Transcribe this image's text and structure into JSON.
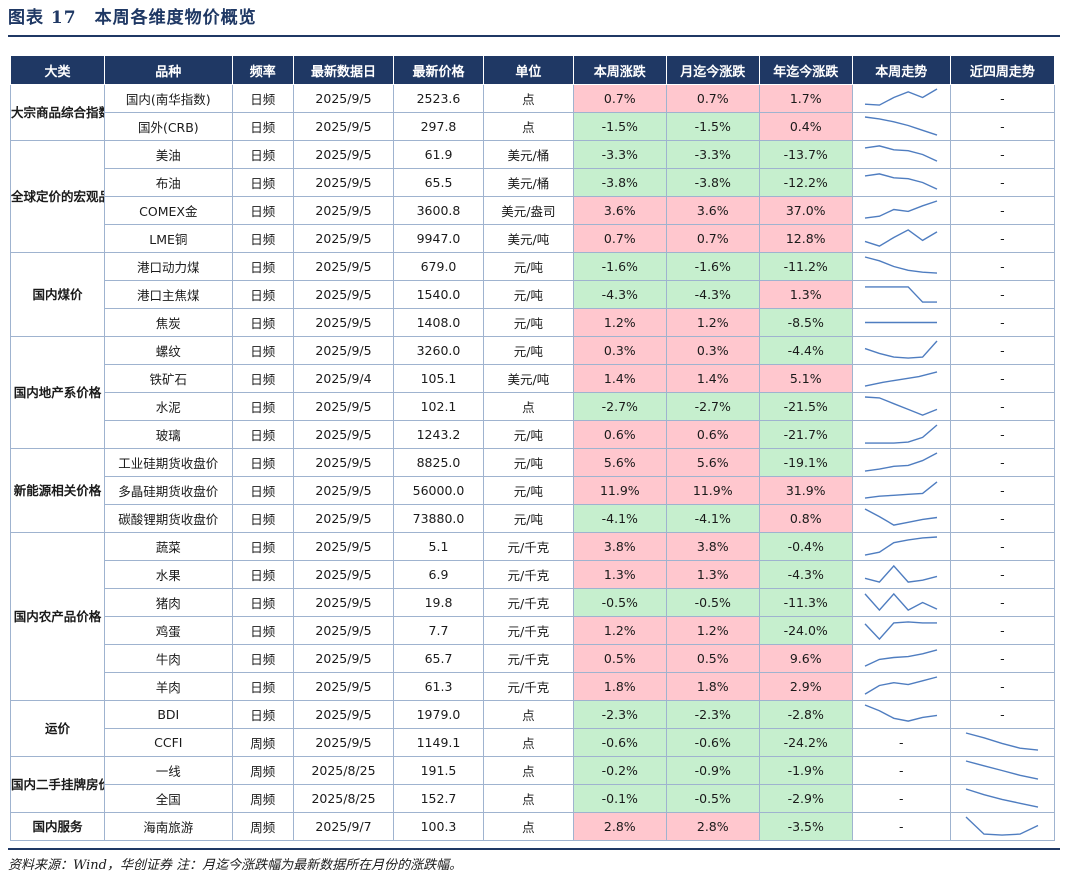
{
  "title": "图表 17　本周各维度物价概览",
  "source_note": "资料来源：Wind，华创证券 注：月迄今涨跌幅为最新数据所在月份的涨跌幅。",
  "colors": {
    "header_bg": "#1f3864",
    "rise_bg": "#ffc7ce",
    "fall_bg": "#c6efce",
    "spark_line": "#4f7dc0"
  },
  "headers": [
    "大类",
    "品种",
    "频率",
    "最新数据日",
    "最新价格",
    "单位",
    "本周涨跌",
    "月迄今涨跌",
    "年迄今涨跌",
    "本周走势",
    "近四周走势"
  ],
  "groups": [
    {
      "category": "大宗商品综合指数",
      "rows": [
        {
          "name": "国内(南华指数)",
          "freq": "日频",
          "date": "2025/9/5",
          "price": "2523.6",
          "unit": "点",
          "wk": "0.7%",
          "mtd": "0.7%",
          "ytd": "1.7%",
          "wk_trend": [
            0.2,
            0.15,
            0.55,
            0.85,
            0.55,
            1.0
          ],
          "m4_trend": "-"
        },
        {
          "name": "国外(CRB)",
          "freq": "日频",
          "date": "2025/9/5",
          "price": "297.8",
          "unit": "点",
          "wk": "-1.5%",
          "mtd": "-1.5%",
          "ytd": "0.4%",
          "wk_trend": [
            1.0,
            0.9,
            0.75,
            0.55,
            0.3,
            0.05
          ],
          "m4_trend": "-"
        }
      ]
    },
    {
      "category": "全球定价的宏观品种",
      "rows": [
        {
          "name": "美油",
          "freq": "日频",
          "date": "2025/9/5",
          "price": "61.9",
          "unit": "美元/桶",
          "wk": "-3.3%",
          "mtd": "-3.3%",
          "ytd": "-13.7%",
          "wk_trend": [
            0.85,
            0.95,
            0.75,
            0.7,
            0.5,
            0.15
          ],
          "m4_trend": "-"
        },
        {
          "name": "布油",
          "freq": "日频",
          "date": "2025/9/5",
          "price": "65.5",
          "unit": "美元/桶",
          "wk": "-3.8%",
          "mtd": "-3.8%",
          "ytd": "-12.2%",
          "wk_trend": [
            0.85,
            0.95,
            0.75,
            0.7,
            0.5,
            0.15
          ],
          "m4_trend": "-"
        },
        {
          "name": "COMEX金",
          "freq": "日频",
          "date": "2025/9/5",
          "price": "3600.8",
          "unit": "美元/盎司",
          "wk": "3.6%",
          "mtd": "3.6%",
          "ytd": "37.0%",
          "wk_trend": [
            0.1,
            0.2,
            0.55,
            0.45,
            0.75,
            1.0
          ],
          "m4_trend": "-"
        },
        {
          "name": "LME铜",
          "freq": "日频",
          "date": "2025/9/5",
          "price": "9947.0",
          "unit": "美元/吨",
          "wk": "0.7%",
          "mtd": "0.7%",
          "ytd": "12.8%",
          "wk_trend": [
            0.35,
            0.1,
            0.55,
            0.95,
            0.4,
            0.85
          ],
          "m4_trend": "-"
        }
      ]
    },
    {
      "category": "国内煤价",
      "rows": [
        {
          "name": "港口动力煤",
          "freq": "日频",
          "date": "2025/9/5",
          "price": "679.0",
          "unit": "元/吨",
          "wk": "-1.6%",
          "mtd": "-1.6%",
          "ytd": "-11.2%",
          "wk_trend": [
            1.0,
            0.8,
            0.5,
            0.3,
            0.2,
            0.15
          ],
          "m4_trend": "-"
        },
        {
          "name": "港口主焦煤",
          "freq": "日频",
          "date": "2025/9/5",
          "price": "1540.0",
          "unit": "元/吨",
          "wk": "-4.3%",
          "mtd": "-4.3%",
          "ytd": "1.3%",
          "wk_trend": [
            0.9,
            0.9,
            0.9,
            0.9,
            0.1,
            0.1
          ],
          "m4_trend": "-"
        },
        {
          "name": "焦炭",
          "freq": "日频",
          "date": "2025/9/5",
          "price": "1408.0",
          "unit": "元/吨",
          "wk": "1.2%",
          "mtd": "1.2%",
          "ytd": "-8.5%",
          "wk_trend": [
            0.5,
            0.5,
            0.5,
            0.5,
            0.5,
            0.5
          ],
          "m4_trend": "-"
        }
      ]
    },
    {
      "category": "国内地产系价格",
      "rows": [
        {
          "name": "螺纹",
          "freq": "日频",
          "date": "2025/9/5",
          "price": "3260.0",
          "unit": "元/吨",
          "wk": "0.3%",
          "mtd": "0.3%",
          "ytd": "-4.4%",
          "wk_trend": [
            0.6,
            0.35,
            0.15,
            0.1,
            0.15,
            1.0
          ],
          "m4_trend": "-"
        },
        {
          "name": "铁矿石",
          "freq": "日频",
          "date": "2025/9/4",
          "price": "105.1",
          "unit": "美元/吨",
          "wk": "1.4%",
          "mtd": "1.4%",
          "ytd": "5.1%",
          "wk_trend": [
            0.1,
            0.3,
            0.45,
            0.6,
            0.85
          ],
          "m4_trend": "-"
        },
        {
          "name": "水泥",
          "freq": "日频",
          "date": "2025/9/5",
          "price": "102.1",
          "unit": "点",
          "wk": "-2.7%",
          "mtd": "-2.7%",
          "ytd": "-21.5%",
          "wk_trend": [
            1.0,
            0.95,
            0.65,
            0.35,
            0.05,
            0.35
          ],
          "m4_trend": "-"
        },
        {
          "name": "玻璃",
          "freq": "日频",
          "date": "2025/9/5",
          "price": "1243.2",
          "unit": "元/吨",
          "wk": "0.6%",
          "mtd": "0.6%",
          "ytd": "-21.7%",
          "wk_trend": [
            0.05,
            0.05,
            0.05,
            0.1,
            0.35,
            1.0
          ],
          "m4_trend": "-"
        }
      ]
    },
    {
      "category": "新能源相关价格",
      "rows": [
        {
          "name": "工业硅期货收盘价",
          "freq": "日频",
          "date": "2025/9/5",
          "price": "8825.0",
          "unit": "元/吨",
          "wk": "5.6%",
          "mtd": "5.6%",
          "ytd": "-19.1%",
          "wk_trend": [
            0.05,
            0.15,
            0.3,
            0.35,
            0.6,
            1.0
          ],
          "m4_trend": "-"
        },
        {
          "name": "多晶硅期货收盘价",
          "freq": "日频",
          "date": "2025/9/5",
          "price": "56000.0",
          "unit": "元/吨",
          "wk": "11.9%",
          "mtd": "11.9%",
          "ytd": "31.9%",
          "wk_trend": [
            0.1,
            0.2,
            0.25,
            0.3,
            0.35,
            0.95
          ],
          "m4_trend": "-"
        },
        {
          "name": "碳酸锂期货收盘价",
          "freq": "日频",
          "date": "2025/9/5",
          "price": "73880.0",
          "unit": "元/吨",
          "wk": "-4.1%",
          "mtd": "-4.1%",
          "ytd": "0.8%",
          "wk_trend": [
            1.0,
            0.6,
            0.15,
            0.3,
            0.45,
            0.55
          ],
          "m4_trend": "-"
        }
      ]
    },
    {
      "category": "国内农产品价格",
      "rows": [
        {
          "name": "蔬菜",
          "freq": "日频",
          "date": "2025/9/5",
          "price": "5.1",
          "unit": "元/千克",
          "wk": "3.8%",
          "mtd": "3.8%",
          "ytd": "-0.4%",
          "wk_trend": [
            0.05,
            0.2,
            0.7,
            0.85,
            0.95,
            1.0
          ],
          "m4_trend": "-"
        },
        {
          "name": "水果",
          "freq": "日频",
          "date": "2025/9/5",
          "price": "6.9",
          "unit": "元/千克",
          "wk": "1.3%",
          "mtd": "1.3%",
          "ytd": "-4.3%",
          "wk_trend": [
            0.3,
            0.1,
            0.95,
            0.1,
            0.2,
            0.4
          ],
          "m4_trend": "-"
        },
        {
          "name": "猪肉",
          "freq": "日频",
          "date": "2025/9/5",
          "price": "19.8",
          "unit": "元/千克",
          "wk": "-0.5%",
          "mtd": "-0.5%",
          "ytd": "-11.3%",
          "wk_trend": [
            0.95,
            0.1,
            0.95,
            0.1,
            0.5,
            0.15
          ],
          "m4_trend": "-"
        },
        {
          "name": "鸡蛋",
          "freq": "日频",
          "date": "2025/9/5",
          "price": "7.7",
          "unit": "元/千克",
          "wk": "1.2%",
          "mtd": "1.2%",
          "ytd": "-24.0%",
          "wk_trend": [
            0.85,
            0.05,
            0.9,
            0.95,
            0.9,
            0.9
          ],
          "m4_trend": "-"
        },
        {
          "name": "牛肉",
          "freq": "日频",
          "date": "2025/9/5",
          "price": "65.7",
          "unit": "元/千克",
          "wk": "0.5%",
          "mtd": "0.5%",
          "ytd": "9.6%",
          "wk_trend": [
            0.1,
            0.45,
            0.55,
            0.6,
            0.75,
            0.95
          ],
          "m4_trend": "-"
        },
        {
          "name": "羊肉",
          "freq": "日频",
          "date": "2025/9/5",
          "price": "61.3",
          "unit": "元/千克",
          "wk": "1.8%",
          "mtd": "1.8%",
          "ytd": "2.9%",
          "wk_trend": [
            0.1,
            0.55,
            0.7,
            0.6,
            0.8,
            1.0
          ],
          "m4_trend": "-"
        }
      ]
    },
    {
      "category": "运价",
      "rows": [
        {
          "name": "BDI",
          "freq": "日频",
          "date": "2025/9/5",
          "price": "1979.0",
          "unit": "点",
          "wk": "-2.3%",
          "mtd": "-2.3%",
          "ytd": "-2.8%",
          "wk_trend": [
            1.0,
            0.7,
            0.3,
            0.15,
            0.35,
            0.45
          ],
          "m4_trend": "-"
        },
        {
          "name": "CCFI",
          "freq": "周频",
          "date": "2025/9/5",
          "price": "1149.1",
          "unit": "点",
          "wk": "-0.6%",
          "mtd": "-0.6%",
          "ytd": "-24.2%",
          "wk_trend": "-",
          "m4_trend": [
            1.0,
            0.75,
            0.45,
            0.2,
            0.1
          ]
        }
      ]
    },
    {
      "category": "国内二手挂牌房价",
      "rows": [
        {
          "name": "一线",
          "freq": "周频",
          "date": "2025/8/25",
          "price": "191.5",
          "unit": "点",
          "wk": "-0.2%",
          "mtd": "-0.9%",
          "ytd": "-1.9%",
          "wk_trend": "-",
          "m4_trend": [
            1.0,
            0.75,
            0.5,
            0.25,
            0.05
          ]
        },
        {
          "name": "全国",
          "freq": "周频",
          "date": "2025/8/25",
          "price": "152.7",
          "unit": "点",
          "wk": "-0.1%",
          "mtd": "-0.5%",
          "ytd": "-2.9%",
          "wk_trend": "-",
          "m4_trend": [
            1.0,
            0.7,
            0.45,
            0.25,
            0.05
          ]
        }
      ]
    },
    {
      "category": "国内服务",
      "rows": [
        {
          "name": "海南旅游",
          "freq": "周频",
          "date": "2025/9/7",
          "price": "100.3",
          "unit": "点",
          "wk": "2.8%",
          "mtd": "2.8%",
          "ytd": "-3.5%",
          "wk_trend": "-",
          "m4_trend": [
            1.0,
            0.1,
            0.05,
            0.1,
            0.55
          ]
        }
      ]
    }
  ]
}
